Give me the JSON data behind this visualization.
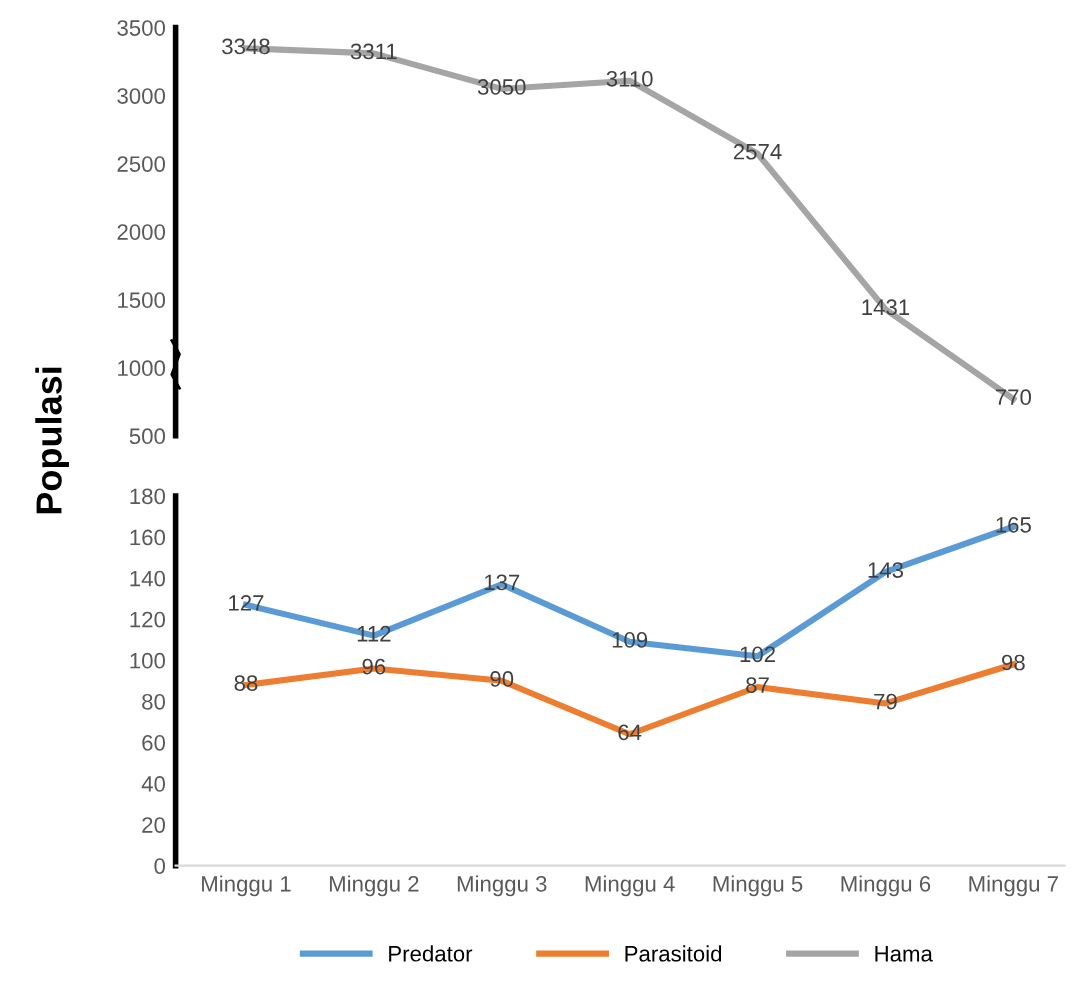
{
  "chart_data": [
    {
      "type": "line",
      "series": [
        {
          "name": "Hama",
          "color": "#a5a5a5",
          "values": [
            3348,
            3311,
            3050,
            3110,
            2574,
            1431,
            770
          ]
        }
      ],
      "ylim": [
        500,
        3500
      ],
      "yticks": [
        500,
        1000,
        1500,
        2000,
        2500,
        3000,
        3500
      ],
      "tick_labels": "y",
      "data_labels": true,
      "grid": false,
      "marker": "none",
      "line_style": "solid"
    },
    {
      "type": "line",
      "categories": [
        "Minggu 1",
        "Minggu 2",
        "Minggu 3",
        "Minggu 4",
        "Minggu 5",
        "Minggu 6",
        "Minggu 7"
      ],
      "ylabel": "Populasi",
      "series": [
        {
          "name": "Predator",
          "color": "#5b9bd5",
          "values": [
            127,
            112,
            137,
            109,
            102,
            143,
            165
          ]
        },
        {
          "name": "Parasitoid",
          "color": "#ed7d31",
          "values": [
            88,
            96,
            90,
            64,
            87,
            79,
            98
          ]
        }
      ],
      "ylim": [
        0,
        180
      ],
      "yticks": [
        0,
        20,
        40,
        60,
        80,
        100,
        120,
        140,
        160,
        180
      ],
      "data_labels": true,
      "grid": false,
      "marker": "none",
      "line_style": "solid",
      "legend": "bottom"
    }
  ]
}
